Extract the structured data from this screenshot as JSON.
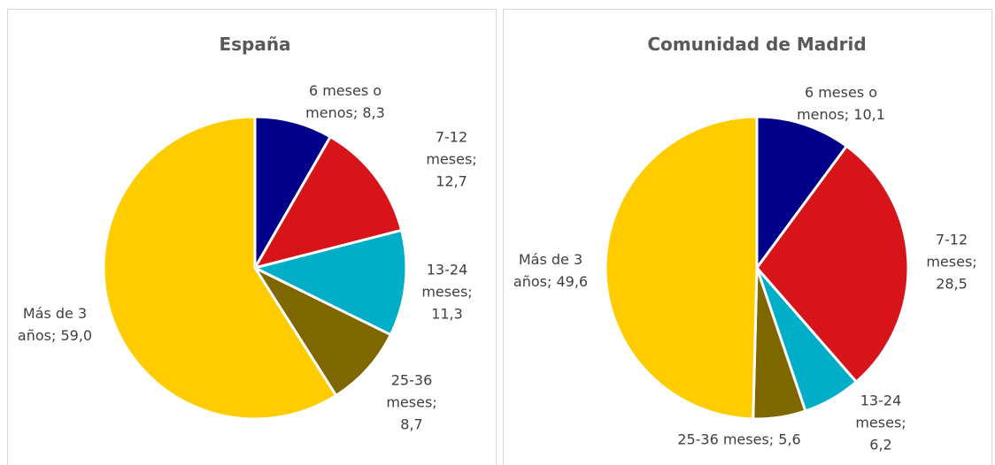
{
  "chart_data": [
    {
      "type": "pie",
      "title": "España",
      "categories": [
        "6 meses o menos",
        "7-12 meses",
        "13-24 meses",
        "25-36 meses",
        "Más de 3 años"
      ],
      "values": [
        8.3,
        12.7,
        11.3,
        8.7,
        59.0
      ],
      "value_labels": [
        "8,3",
        "12,7",
        "11,3",
        "8,7",
        "59,0"
      ],
      "label_separator": ";",
      "colors": [
        "#00008b",
        "#d7141a",
        "#00aec7",
        "#7f6700",
        "#ffcc00"
      ]
    },
    {
      "type": "pie",
      "title": "Comunidad de Madrid",
      "categories": [
        "6 meses o menos",
        "7-12 meses",
        "13-24 meses",
        "25-36 meses",
        "Más de 3 años"
      ],
      "values": [
        10.1,
        28.5,
        6.2,
        5.6,
        49.6
      ],
      "value_labels": [
        "10,1",
        "28,5",
        "6,2",
        "5,6",
        "49,6"
      ],
      "label_separator": ";",
      "colors": [
        "#00008b",
        "#d7141a",
        "#00aec7",
        "#7f6700",
        "#ffcc00"
      ]
    }
  ]
}
